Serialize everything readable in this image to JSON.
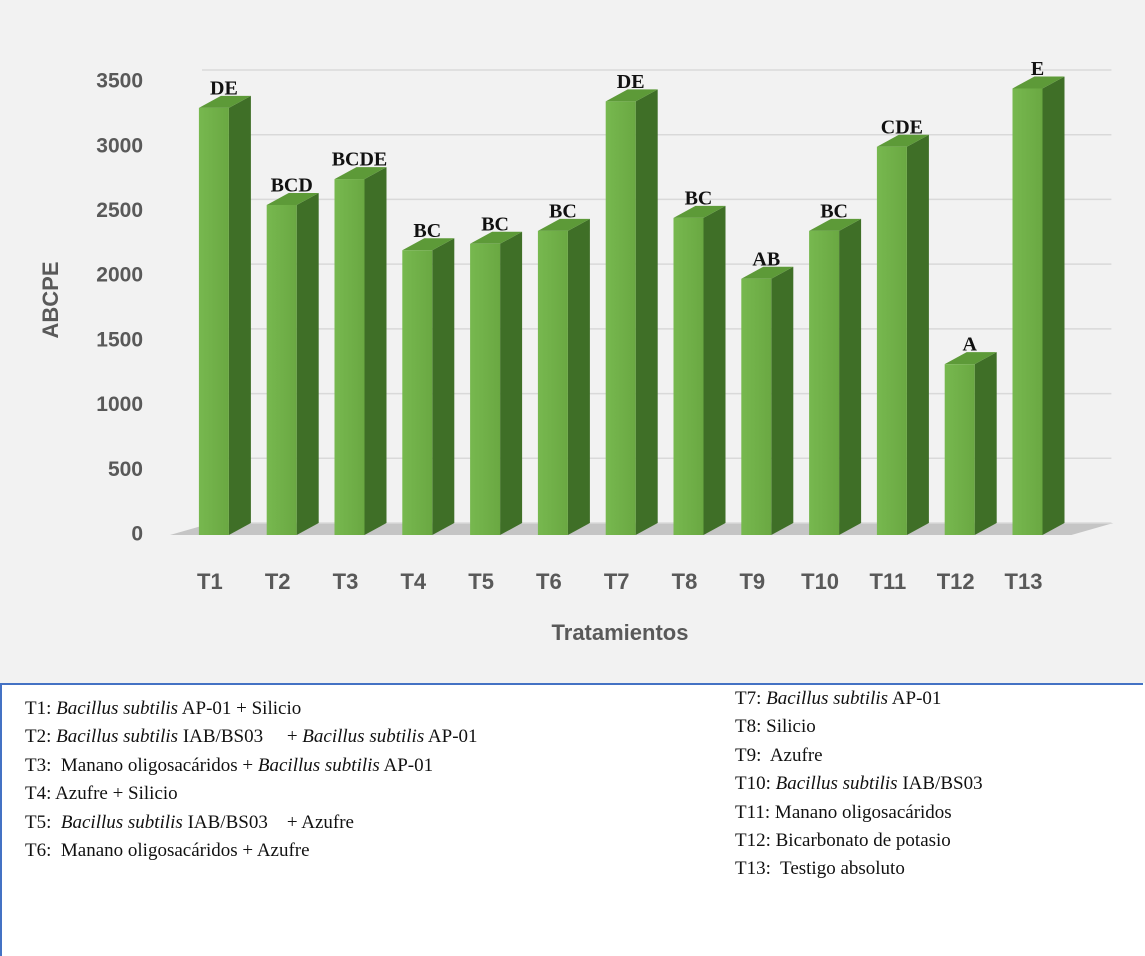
{
  "chart_data": {
    "type": "bar3d",
    "y_label": "ABCPE",
    "x_label": "Tratamientos",
    "categories": [
      "T1",
      "T2",
      "T3",
      "T4",
      "T5",
      "T6",
      "T7",
      "T8",
      "T9",
      "T10",
      "T11",
      "T12",
      "T13"
    ],
    "values": [
      3300,
      2550,
      2750,
      2200,
      2250,
      2350,
      3350,
      2450,
      1980,
      2350,
      3000,
      1320,
      3450
    ],
    "letters": [
      "DE",
      "BCD",
      "BCDE",
      "BC",
      "BC",
      "BC",
      "DE",
      "BC",
      "AB",
      "BC",
      "CDE",
      "A",
      "E"
    ],
    "color": "#77b84f",
    "ylim": [
      0,
      3500
    ],
    "yticks": [
      0,
      500,
      1000,
      1500,
      2000,
      2500,
      3000,
      3500
    ],
    "grid": true
  },
  "legend": {
    "left": [
      [
        {
          "t": "T1: "
        },
        {
          "t": "Bacillus subtilis",
          "i": true
        },
        {
          "t": " AP-01 + Silicio"
        }
      ],
      [
        {
          "t": "T2: "
        },
        {
          "t": "Bacillus subtilis",
          "i": true
        },
        {
          "t": " IAB/BS03     + "
        },
        {
          "t": "Bacillus subtilis",
          "i": true
        },
        {
          "t": " AP-01"
        }
      ],
      [
        {
          "t": "T3:  Manano oligosacáridos + "
        },
        {
          "t": "Bacillus subtilis",
          "i": true
        },
        {
          "t": " AP-01"
        }
      ],
      [
        {
          "t": "T4: Azufre + Silicio"
        }
      ],
      [
        {
          "t": "T5:  "
        },
        {
          "t": "Bacillus subtilis",
          "i": true
        },
        {
          "t": " IAB/BS03    + Azufre"
        }
      ],
      [
        {
          "t": "T6:  Manano oligosacáridos + Azufre"
        }
      ]
    ],
    "right": [
      [
        {
          "t": "T7: "
        },
        {
          "t": "Bacillus subtilis",
          "i": true
        },
        {
          "t": " AP-01"
        }
      ],
      [
        {
          "t": "T8: Silicio"
        }
      ],
      [
        {
          "t": "T9:  Azufre"
        }
      ],
      [
        {
          "t": "T10: "
        },
        {
          "t": "Bacillus subtilis",
          "i": true
        },
        {
          "t": " IAB/BS03"
        }
      ],
      [
        {
          "t": "T11: Manano oligosacáridos"
        }
      ],
      [
        {
          "t": "T12: Bicarbonato de potasio"
        }
      ],
      [
        {
          "t": "T13:  Testigo absoluto"
        }
      ]
    ]
  }
}
